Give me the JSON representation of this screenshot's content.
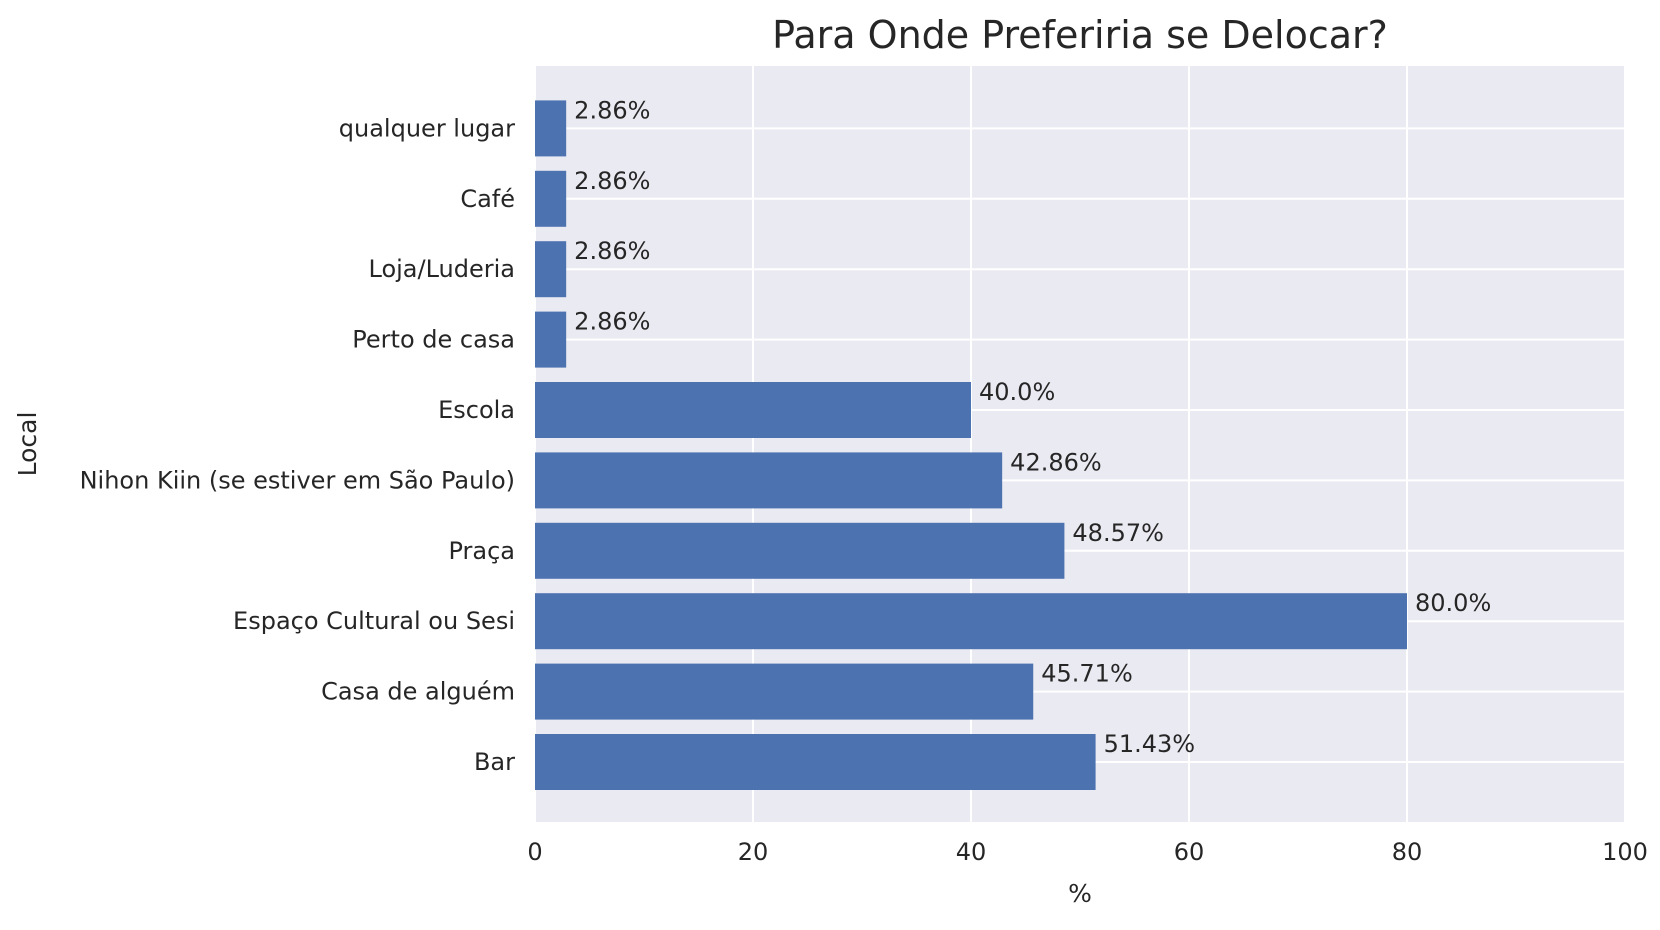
{
  "chart_data": {
    "type": "bar",
    "orientation": "horizontal",
    "title": "Para Onde Preferiria se Delocar?",
    "xlabel": "%",
    "ylabel": "Local",
    "xlim": [
      0,
      100
    ],
    "xticks": [
      0,
      20,
      40,
      60,
      80,
      100
    ],
    "grid": true,
    "categories": [
      "Bar",
      "Casa de alguém",
      "Espaço Cultural ou Sesi",
      "Praça",
      "Nihon Kiin (se estiver em São Paulo)",
      "Escola",
      "Perto de casa",
      "Loja/Luderia",
      "Café",
      "qualquer lugar"
    ],
    "values": [
      51.43,
      45.71,
      80.0,
      48.57,
      42.86,
      40.0,
      2.86,
      2.86,
      2.86,
      2.86
    ],
    "data_labels": [
      "51.43%",
      "45.71%",
      "80.0%",
      "48.57%",
      "42.86%",
      "40.0%",
      "2.86%",
      "2.86%",
      "2.86%",
      "2.86%"
    ],
    "colors": {
      "bar": "#4c72b0",
      "plot_background": "#eaeaf2",
      "grid": "#ffffff",
      "text": "#262626"
    }
  }
}
